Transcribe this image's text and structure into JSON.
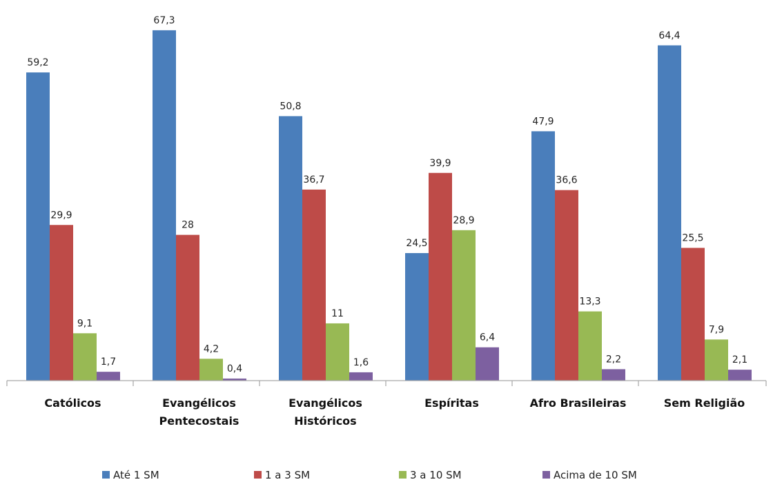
{
  "chart_data": {
    "type": "bar",
    "title": "",
    "xlabel": "",
    "ylabel": "",
    "ylim": [
      0,
      70
    ],
    "grid": false,
    "legend_position": "bottom",
    "categories": [
      [
        "Católicos"
      ],
      [
        "Evangélicos",
        "Pentecostais"
      ],
      [
        "Evangélicos",
        "Históricos"
      ],
      [
        "Espíritas"
      ],
      [
        "Afro Brasileiras"
      ],
      [
        "Sem Religião"
      ]
    ],
    "series": [
      {
        "name": "Até 1 SM",
        "color": "#4a7ebb",
        "values": [
          59.2,
          67.3,
          50.8,
          24.5,
          47.9,
          64.4
        ],
        "labels": [
          "59,2",
          "67,3",
          "50,8",
          "24,5",
          "47,9",
          "64,4"
        ]
      },
      {
        "name": "1 a 3 SM",
        "color": "#be4b48",
        "values": [
          29.9,
          28,
          36.7,
          39.9,
          36.6,
          25.5
        ],
        "labels": [
          "29,9",
          "28",
          "36,7",
          "39,9",
          "36,6",
          "25,5"
        ]
      },
      {
        "name": "3 a 10 SM",
        "color": "#98b954",
        "values": [
          9.1,
          4.2,
          11,
          28.9,
          13.3,
          7.9
        ],
        "labels": [
          "9,1",
          "4,2",
          "11",
          "28,9",
          "13,3",
          "7,9"
        ]
      },
      {
        "name": "Acima de 10 SM",
        "color": "#7d60a0",
        "values": [
          1.7,
          0.4,
          1.6,
          6.4,
          2.2,
          2.1
        ],
        "labels": [
          "1,7",
          "0,4",
          "1,6",
          "6,4",
          "2,2",
          "2,1"
        ]
      }
    ]
  }
}
